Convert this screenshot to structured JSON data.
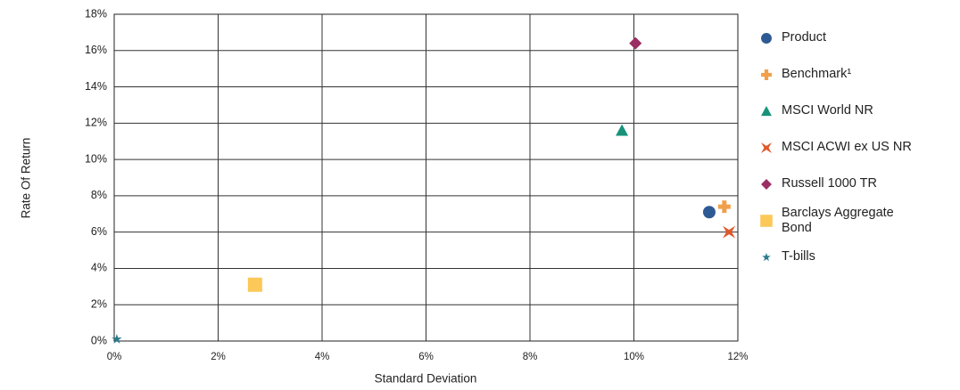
{
  "chart_data": {
    "type": "scatter",
    "x_label": "Standard Deviation",
    "y_label": "Rate Of Return",
    "xlim": [
      0,
      12
    ],
    "ylim": [
      0,
      18
    ],
    "xticks": [
      {
        "value": 0,
        "label": "0%"
      },
      {
        "value": 2,
        "label": "2%"
      },
      {
        "value": 4,
        "label": "4%"
      },
      {
        "value": 6,
        "label": "6%"
      },
      {
        "value": 8,
        "label": "8%"
      },
      {
        "value": 10,
        "label": "10%"
      },
      {
        "value": 12,
        "label": "12%"
      }
    ],
    "yticks": [
      {
        "value": 0,
        "label": "0%"
      },
      {
        "value": 2,
        "label": "2%"
      },
      {
        "value": 4,
        "label": "4%"
      },
      {
        "value": 6,
        "label": "6%"
      },
      {
        "value": 8,
        "label": "8%"
      },
      {
        "value": 10,
        "label": "10%"
      },
      {
        "value": 12,
        "label": "12%"
      },
      {
        "value": 14,
        "label": "14%"
      },
      {
        "value": 16,
        "label": "16%"
      },
      {
        "value": 18,
        "label": "18%"
      }
    ],
    "grid": true,
    "legend": "right",
    "series": [
      {
        "name": "Product",
        "color": "#2e5a94",
        "marker": "circle",
        "x": [
          11.45
        ],
        "values": [
          7.1
        ]
      },
      {
        "name": "Benchmark¹",
        "color": "#f0a04b",
        "marker": "plus",
        "x": [
          11.74
        ],
        "values": [
          7.4
        ]
      },
      {
        "name": "MSCI World NR",
        "color": "#17937a",
        "marker": "triangle",
        "x": [
          9.77
        ],
        "values": [
          11.6
        ]
      },
      {
        "name": "MSCI ACWI ex US NR",
        "color": "#e0582a",
        "marker": "x",
        "x": [
          11.83
        ],
        "values": [
          6.0
        ]
      },
      {
        "name": "Russell 1000 TR",
        "color": "#9b2e62",
        "marker": "diamond",
        "x": [
          10.03
        ],
        "values": [
          16.4
        ]
      },
      {
        "name": "Barclays Aggregate Bond",
        "color": "#fcc858",
        "marker": "square",
        "x": [
          2.71
        ],
        "values": [
          3.1
        ]
      },
      {
        "name": "T-bills",
        "color": "#2a7a8c",
        "marker": "star",
        "x": [
          0.05
        ],
        "values": [
          0.1
        ]
      }
    ]
  }
}
